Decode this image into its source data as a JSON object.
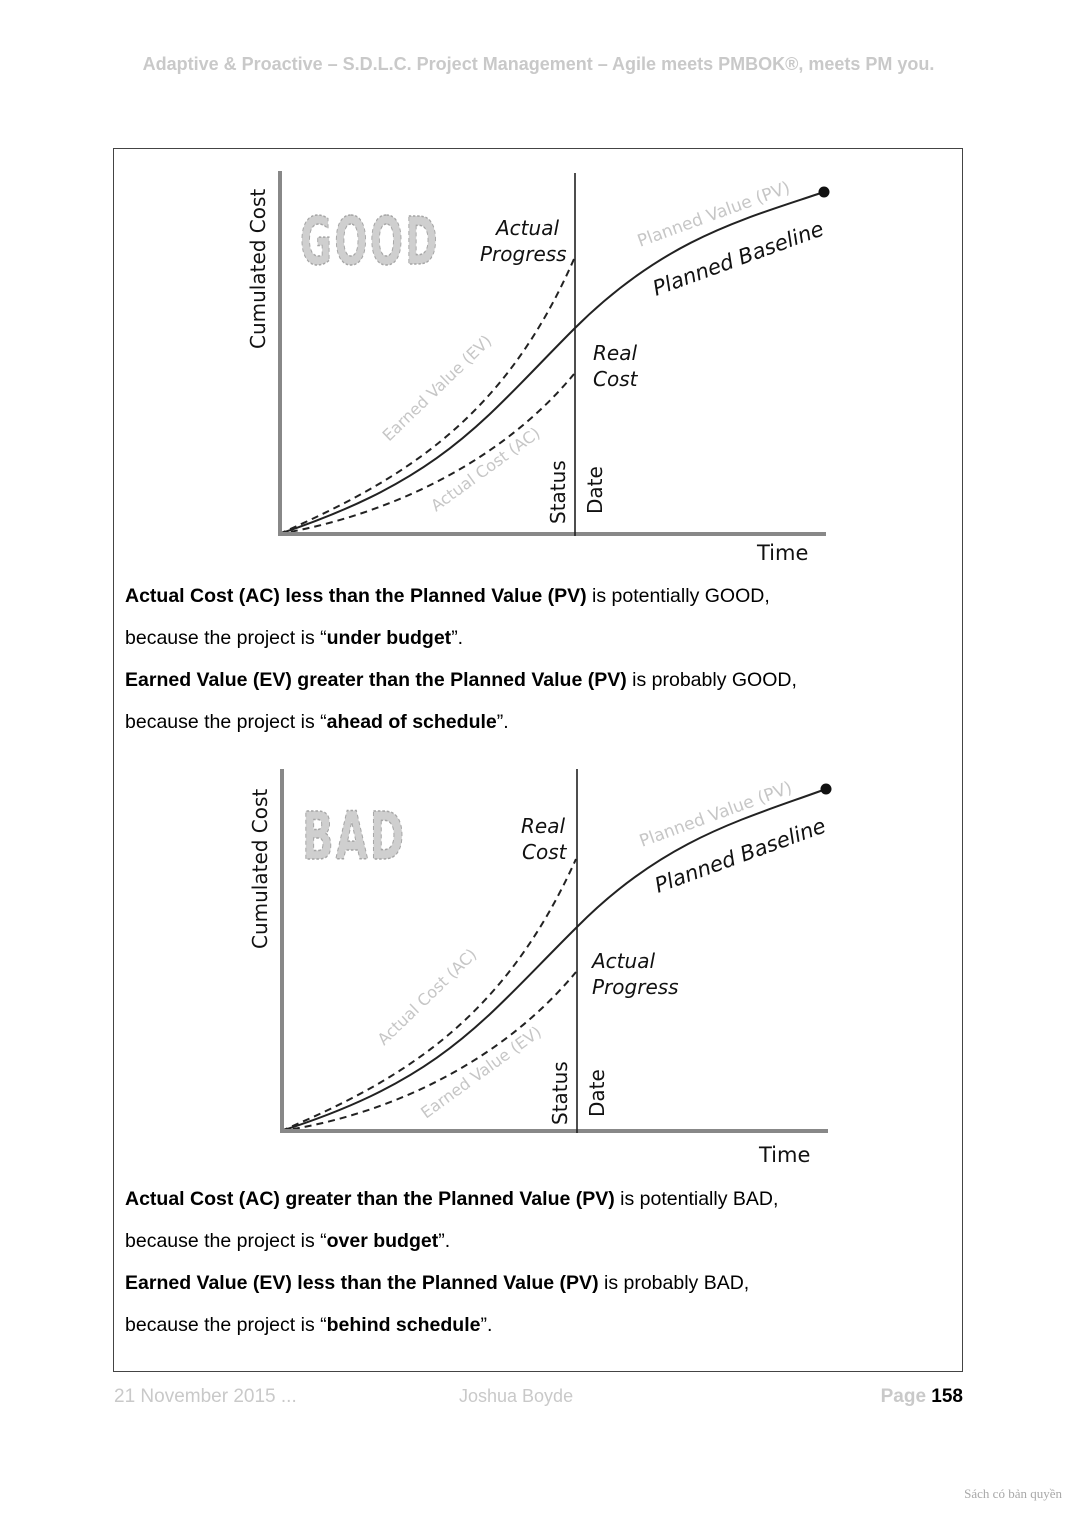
{
  "header": {
    "title": "Adaptive & Proactive – S.D.L.C. Project Management – Agile meets PMBOK®, meets PM you."
  },
  "charts": {
    "good": {
      "stamp": "GOOD",
      "y_axis": "Cumulated Cost",
      "x_axis": "Time",
      "status_1": "Status",
      "status_2": "Date",
      "pv_label": "Planned Value (PV)",
      "baseline_label": "Planned Baseline",
      "upper_label_1": "Actual",
      "upper_label_2": "Progress",
      "lower_label_1": "Real",
      "lower_label_2": "Cost",
      "upper_curve_label": "Earned Value (EV)",
      "lower_curve_label": "Actual Cost (AC)"
    },
    "bad": {
      "stamp": "BAD",
      "y_axis": "Cumulated Cost",
      "x_axis": "Time",
      "status_1": "Status",
      "status_2": "Date",
      "pv_label": "Planned Value (PV)",
      "baseline_label": "Planned Baseline",
      "upper_label_1": "Real",
      "upper_label_2": "Cost",
      "lower_label_1": "Actual",
      "lower_label_2": "Progress",
      "upper_curve_label": "Actual Cost (AC)",
      "lower_curve_label": "Earned Value (EV)"
    }
  },
  "text_good": {
    "l1_bold": "Actual Cost (AC) less than the Planned Value (PV)",
    "l1_rest": " is potentially GOOD,",
    "l2_pre": "because the project is “",
    "l2_bold": "under budget",
    "l2_post": "”.",
    "l3_bold": "Earned Value (EV) greater than the Planned Value (PV)",
    "l3_rest": " is probably GOOD,",
    "l4_pre": "because the project is “",
    "l4_bold": "ahead of schedule",
    "l4_post": "”."
  },
  "text_bad": {
    "l1_bold": "Actual Cost (AC) greater than the Planned Value (PV)",
    "l1_rest": " is potentially BAD,",
    "l2_pre": "because the project is “",
    "l2_bold": "over budget",
    "l2_post": "”.",
    "l3_bold": "Earned Value (EV) less than the Planned Value (PV)",
    "l3_rest": " is probably BAD,",
    "l4_pre": "because the project is “",
    "l4_bold": "behind schedule",
    "l4_post": "”."
  },
  "footer": {
    "date": "21 November 2015 ...",
    "author": "Joshua Boyde",
    "page_label": "Page ",
    "page_number": "158"
  },
  "watermark": "Sách có bản quyền"
}
